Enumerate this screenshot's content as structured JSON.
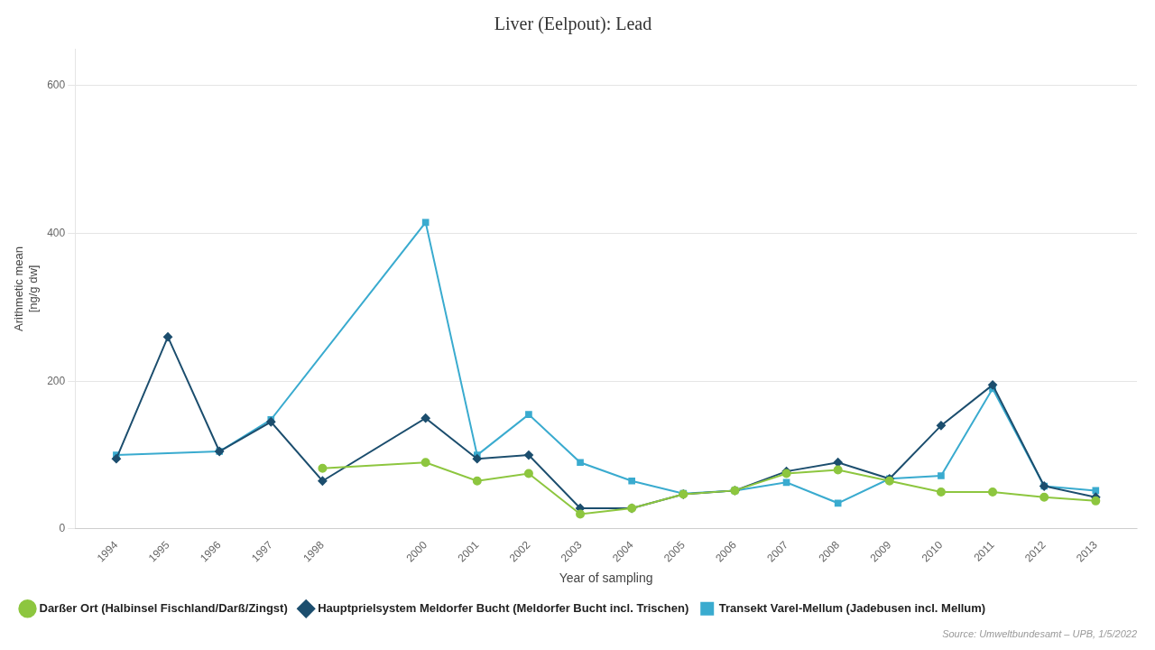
{
  "chart_data": {
    "type": "line",
    "title": "Liver (Eelpout): Lead",
    "xlabel": "Year of sampling",
    "ylabel": "Arithmetic mean\n[ng/g dw]",
    "source": "Source: Umweltbundesamt – UPB, 1/5/2022",
    "xlim": [
      1993.2,
      2013.8
    ],
    "xticks": [
      1994,
      1995,
      1996,
      1997,
      1998,
      2000,
      2001,
      2002,
      2003,
      2004,
      2005,
      2006,
      2007,
      2008,
      2009,
      2010,
      2011,
      2012,
      2013
    ],
    "ylim": [
      0,
      650
    ],
    "yticks": [
      0,
      200,
      400,
      600
    ],
    "grid": "y",
    "legend": "bottom",
    "series": [
      {
        "name": "Darßer Ort (Halbinsel Fischland/Darß/Zingst)",
        "color": "#8DC63F",
        "marker": "circle",
        "x": [
          1998,
          2000,
          2001,
          2002,
          2003,
          2004,
          2005,
          2006,
          2007,
          2008,
          2009,
          2010,
          2011,
          2012,
          2013
        ],
        "values": [
          82,
          90,
          65,
          75,
          20,
          28,
          47,
          52,
          75,
          80,
          65,
          50,
          50,
          43,
          38
        ]
      },
      {
        "name": "Hauptprielsystem Meldorfer Bucht (Meldorfer Bucht incl. Trischen)",
        "color": "#1C4E6E",
        "marker": "diamond",
        "x": [
          1994,
          1995,
          1996,
          1997,
          1998,
          2000,
          2001,
          2002,
          2003,
          2004,
          2005,
          2006,
          2007,
          2008,
          2009,
          2010,
          2011,
          2012,
          2013
        ],
        "values": [
          95,
          260,
          105,
          145,
          65,
          150,
          95,
          100,
          28,
          28,
          47,
          52,
          78,
          90,
          68,
          140,
          195,
          58,
          43
        ]
      },
      {
        "name": "Transekt Varel-Mellum (Jadebusen incl. Mellum)",
        "color": "#3AABCF",
        "marker": "square",
        "x": [
          1994,
          1996,
          1997,
          2000,
          2001,
          2002,
          2003,
          2004,
          2005,
          2006,
          2007,
          2008,
          2009,
          2010,
          2011,
          2012,
          2013
        ],
        "values": [
          100,
          105,
          148,
          415,
          100,
          155,
          90,
          65,
          48,
          52,
          63,
          35,
          68,
          72,
          190,
          58,
          52
        ]
      }
    ]
  }
}
